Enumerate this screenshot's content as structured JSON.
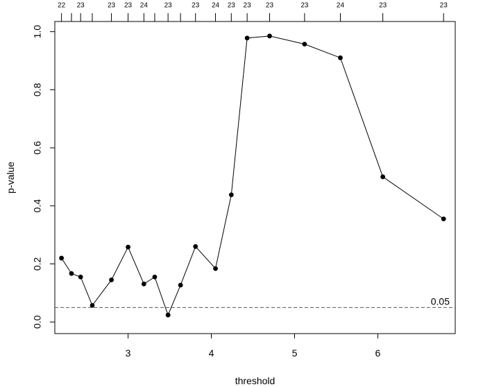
{
  "chart_data": {
    "type": "line",
    "xlabel": "threshold",
    "ylabel": "p-value",
    "xlim": [
      2.12,
      6.93
    ],
    "ylim": [
      -0.04,
      1.035
    ],
    "x_ticks": [
      3,
      4,
      5,
      6
    ],
    "y_ticks": [
      0.0,
      0.2,
      0.4,
      0.6,
      0.8,
      1.0
    ],
    "x_tick_labels": [
      "3",
      "4",
      "5",
      "6"
    ],
    "y_tick_labels": [
      "0.0",
      "0.2",
      "0.4",
      "0.6",
      "0.8",
      "1.0"
    ],
    "grid": false,
    "series": [
      {
        "x": [
          2.2,
          2.32,
          2.43,
          2.57,
          2.8,
          3.0,
          3.19,
          3.32,
          3.48,
          3.63,
          3.81,
          4.05,
          4.24,
          4.43,
          4.7,
          5.12,
          5.55,
          6.06,
          6.79
        ],
        "y": [
          0.22,
          0.167,
          0.155,
          0.057,
          0.145,
          0.258,
          0.131,
          0.155,
          0.024,
          0.127,
          0.26,
          0.184,
          0.438,
          0.978,
          0.985,
          0.957,
          0.91,
          0.5,
          0.355
        ]
      }
    ],
    "top_axis": {
      "positions": [
        2.2,
        2.32,
        2.43,
        2.57,
        2.8,
        3.0,
        3.19,
        3.32,
        3.48,
        3.63,
        3.81,
        4.05,
        4.24,
        4.43,
        4.7,
        5.12,
        5.55,
        6.06,
        6.79
      ],
      "labels": [
        "22",
        "",
        "23",
        "",
        "23",
        "23",
        "24",
        "",
        "23",
        "",
        "23",
        "24",
        "23",
        "23",
        "23",
        "23",
        "24",
        "23",
        "23"
      ]
    },
    "reference_line": {
      "y": 0.05,
      "label": "0.05",
      "style": "dashed",
      "color": "#555555"
    },
    "colors": {
      "line": "#000000",
      "point": "#000000",
      "frame": "#000000",
      "reference": "#555555",
      "reference_label": "#666666"
    }
  }
}
